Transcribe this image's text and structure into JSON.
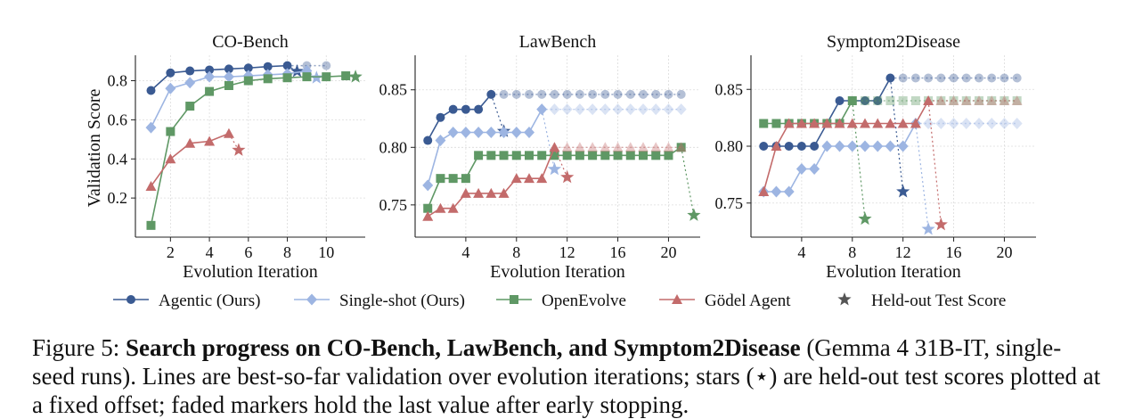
{
  "chart_data": [
    {
      "type": "line",
      "title": "CO-Bench",
      "xlabel": "Evolution Iteration",
      "ylabel": "Validation Score",
      "xlim": [
        0.2,
        12.0
      ],
      "ylim": [
        0.0,
        0.93
      ],
      "xticks": [
        2,
        4,
        6,
        8,
        10
      ],
      "yticks": [
        0.2,
        0.4,
        0.6,
        0.8
      ],
      "ytick_labels": [
        "0.2",
        "0.4",
        "0.6",
        "0.8"
      ],
      "grid": true,
      "series": [
        {
          "name": "Agentic (Ours)",
          "x": [
            1,
            2,
            3,
            4,
            5,
            6,
            7,
            8
          ],
          "y": [
            0.75,
            0.84,
            0.85,
            0.855,
            0.86,
            0.865,
            0.872,
            0.877
          ],
          "held": [
            9,
            10
          ],
          "held_y": 0.877,
          "test": [
            8.5,
            0.848
          ]
        },
        {
          "name": "Single-shot (Ours)",
          "x": [
            1,
            2,
            3,
            4,
            5,
            6,
            7,
            8,
            9
          ],
          "y": [
            0.56,
            0.76,
            0.79,
            0.82,
            0.82,
            0.825,
            0.83,
            0.835,
            0.85
          ],
          "held": [],
          "held_y": 0.85,
          "test": [
            9.5,
            0.815
          ]
        },
        {
          "name": "OpenEvolve",
          "x": [
            1,
            2,
            3,
            4,
            5,
            6,
            7,
            8,
            9,
            10,
            11
          ],
          "y": [
            0.06,
            0.54,
            0.67,
            0.745,
            0.775,
            0.8,
            0.81,
            0.815,
            0.82,
            0.82,
            0.825
          ],
          "held": [],
          "held_y": 0.825,
          "test": [
            11.5,
            0.82
          ]
        },
        {
          "name": "Gödel Agent",
          "x": [
            1,
            2,
            3,
            4,
            5
          ],
          "y": [
            0.26,
            0.4,
            0.48,
            0.49,
            0.53
          ],
          "held": [],
          "held_y": 0.53,
          "test": [
            5.5,
            0.445
          ]
        }
      ]
    },
    {
      "type": "line",
      "title": "LawBench",
      "xlabel": "Evolution Iteration",
      "ylabel": "",
      "xlim": [
        0.0,
        22.5
      ],
      "ylim": [
        0.722,
        0.88
      ],
      "xticks": [
        4,
        8,
        12,
        16,
        20
      ],
      "yticks": [
        0.75,
        0.8,
        0.85
      ],
      "ytick_labels": [
        "0.75",
        "0.80",
        "0.85"
      ],
      "grid": true,
      "series": [
        {
          "name": "Agentic (Ours)",
          "x": [
            1,
            2,
            3,
            4,
            5,
            6
          ],
          "y": [
            0.806,
            0.826,
            0.833,
            0.833,
            0.833,
            0.846
          ],
          "held": [
            7,
            8,
            9,
            10,
            11,
            12,
            13,
            14,
            15,
            16,
            17,
            18,
            19,
            20,
            21
          ],
          "held_y": 0.846,
          "test": [
            7,
            0.814
          ]
        },
        {
          "name": "Single-shot (Ours)",
          "x": [
            1,
            2,
            3,
            4,
            5,
            6,
            7,
            8,
            9,
            10
          ],
          "y": [
            0.767,
            0.806,
            0.813,
            0.813,
            0.813,
            0.813,
            0.813,
            0.813,
            0.813,
            0.833
          ],
          "held": [
            11,
            12,
            13,
            14,
            15,
            16,
            17,
            18,
            19,
            20,
            21
          ],
          "held_y": 0.833,
          "test": [
            11,
            0.781
          ]
        },
        {
          "name": "OpenEvolve",
          "x": [
            1,
            2,
            3,
            4,
            5,
            6,
            7,
            8,
            9,
            10,
            11,
            12,
            13,
            14,
            15,
            16,
            17,
            18,
            19,
            20,
            21
          ],
          "y": [
            0.747,
            0.773,
            0.773,
            0.773,
            0.793,
            0.793,
            0.793,
            0.793,
            0.793,
            0.793,
            0.793,
            0.793,
            0.793,
            0.793,
            0.793,
            0.793,
            0.793,
            0.793,
            0.793,
            0.793,
            0.8
          ],
          "held": [],
          "held_y": 0.8,
          "test": [
            22,
            0.741
          ]
        },
        {
          "name": "Gödel Agent",
          "x": [
            1,
            2,
            3,
            4,
            5,
            6,
            7,
            8,
            9,
            10,
            11
          ],
          "y": [
            0.74,
            0.747,
            0.747,
            0.76,
            0.76,
            0.76,
            0.76,
            0.773,
            0.773,
            0.773,
            0.8
          ],
          "held": [
            12,
            13,
            14,
            15,
            16,
            17,
            18,
            19,
            20,
            21
          ],
          "held_y": 0.8,
          "test": [
            12,
            0.774
          ]
        }
      ]
    },
    {
      "type": "line",
      "title": "Symptom2Disease",
      "xlabel": "Evolution Iteration",
      "ylabel": "",
      "xlim": [
        0.0,
        22.5
      ],
      "ylim": [
        0.72,
        0.88
      ],
      "xticks": [
        4,
        8,
        12,
        16,
        20
      ],
      "yticks": [
        0.75,
        0.8,
        0.85
      ],
      "ytick_labels": [
        "0.75",
        "0.80",
        "0.85"
      ],
      "grid": true,
      "series": [
        {
          "name": "Agentic (Ours)",
          "x": [
            1,
            2,
            3,
            4,
            5,
            6,
            7,
            8,
            9,
            10,
            11
          ],
          "y": [
            0.8,
            0.8,
            0.8,
            0.8,
            0.8,
            0.82,
            0.84,
            0.84,
            0.84,
            0.84,
            0.86
          ],
          "held": [
            12,
            13,
            14,
            15,
            16,
            17,
            18,
            19,
            20,
            21
          ],
          "held_y": 0.86,
          "test": [
            12,
            0.76
          ]
        },
        {
          "name": "Single-shot (Ours)",
          "x": [
            1,
            2,
            3,
            4,
            5,
            6,
            7,
            8,
            9,
            10,
            11,
            12,
            13
          ],
          "y": [
            0.76,
            0.76,
            0.76,
            0.78,
            0.78,
            0.8,
            0.8,
            0.8,
            0.8,
            0.8,
            0.8,
            0.8,
            0.82
          ],
          "held": [
            14,
            15,
            16,
            17,
            18,
            19,
            20,
            21
          ],
          "held_y": 0.82,
          "test": [
            14,
            0.727
          ]
        },
        {
          "name": "OpenEvolve",
          "x": [
            1,
            2,
            3,
            4,
            5,
            6,
            7,
            8
          ],
          "y": [
            0.82,
            0.82,
            0.82,
            0.82,
            0.82,
            0.82,
            0.82,
            0.84
          ],
          "held": [
            9,
            10,
            11,
            12,
            13,
            14,
            15,
            16,
            17,
            18,
            19,
            20,
            21
          ],
          "held_y": 0.84,
          "test": [
            9,
            0.736
          ]
        },
        {
          "name": "Gödel Agent",
          "x": [
            1,
            2,
            3,
            4,
            5,
            6,
            7,
            8,
            9,
            10,
            11,
            12,
            13,
            14
          ],
          "y": [
            0.76,
            0.8,
            0.82,
            0.82,
            0.82,
            0.82,
            0.82,
            0.82,
            0.82,
            0.82,
            0.82,
            0.82,
            0.82,
            0.84
          ],
          "held": [
            15,
            16,
            17,
            18,
            19,
            20,
            21
          ],
          "held_y": 0.84,
          "test": [
            15,
            0.731
          ]
        }
      ]
    }
  ],
  "series_style": [
    {
      "color": "#3a5a92",
      "marker": "circle"
    },
    {
      "color": "#9db5e2",
      "marker": "diamond"
    },
    {
      "color": "#5f9865",
      "marker": "square"
    },
    {
      "color": "#c36b6b",
      "marker": "triangle"
    }
  ],
  "legend": {
    "items": [
      "Agentic (Ours)",
      "Single-shot (Ours)",
      "OpenEvolve",
      "Gödel Agent",
      "Held-out Test Score"
    ],
    "test_marker_color": "#555555"
  },
  "caption": {
    "label": "Figure 5:",
    "bold": "Search progress on CO-Bench, LawBench, and Symptom2Disease",
    "rest": "(Gemma 4 31B-IT, single-seed runs). Lines are best-so-far validation over evolution iterations; stars (⋆) are held-out test scores plotted at a fixed offset; faded markers hold the last value after early stopping."
  }
}
